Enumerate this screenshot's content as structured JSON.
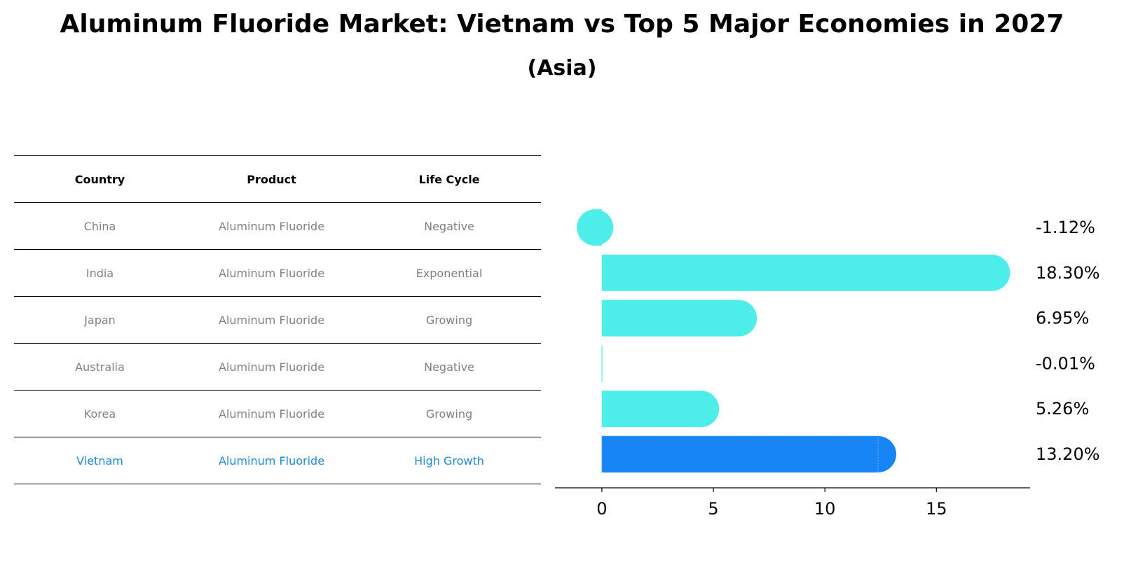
{
  "title": "Aluminum Fluoride Market: Vietnam vs Top 5 Major Economies in 2027",
  "subtitle": "(Asia)",
  "table": {
    "headers": [
      "Country",
      "Product",
      "Life Cycle"
    ],
    "rows": [
      {
        "country": "China",
        "product": "Aluminum Fluoride",
        "life_cycle": "Negative",
        "highlight": false
      },
      {
        "country": "India",
        "product": "Aluminum Fluoride",
        "life_cycle": "Exponential",
        "highlight": false
      },
      {
        "country": "Japan",
        "product": "Aluminum Fluoride",
        "life_cycle": "Growing",
        "highlight": false
      },
      {
        "country": "Australia",
        "product": "Aluminum Fluoride",
        "life_cycle": "Negative",
        "highlight": false
      },
      {
        "country": "Korea",
        "product": "Aluminum Fluoride",
        "life_cycle": "Growing",
        "highlight": false
      },
      {
        "country": "Vietnam",
        "product": "Aluminum Fluoride",
        "life_cycle": "High Growth",
        "highlight": true
      }
    ]
  },
  "chart_data": {
    "type": "bar",
    "orientation": "horizontal",
    "categories": [
      "China",
      "India",
      "Japan",
      "Australia",
      "Korea",
      "Vietnam"
    ],
    "values": [
      -1.12,
      18.3,
      6.95,
      -0.01,
      5.26,
      13.2
    ],
    "value_labels": [
      "-1.12%",
      "18.30%",
      "6.95%",
      "-0.01%",
      "5.26%",
      "13.20%"
    ],
    "x_ticks": [
      0,
      5,
      10,
      15
    ],
    "xlim": [
      -2.1,
      19.2
    ],
    "colors": {
      "default": "#4deeea",
      "highlight": "#1785f5"
    },
    "highlight_index": 5
  }
}
